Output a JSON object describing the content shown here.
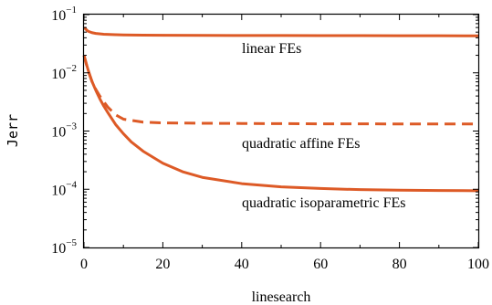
{
  "chart_data": {
    "type": "line",
    "xlabel": "linesearch",
    "ylabel": "Jerr",
    "xlim": [
      0,
      100
    ],
    "ylim": [
      1e-05,
      0.1
    ],
    "yscale": "log",
    "xticks": [
      "0",
      "20",
      "40",
      "60",
      "80",
      "100"
    ],
    "yticks": [
      {
        "base": "10",
        "exp": "−5",
        "value": 1e-05
      },
      {
        "base": "10",
        "exp": "−4",
        "value": 0.0001
      },
      {
        "base": "10",
        "exp": "−3",
        "value": 0.001
      },
      {
        "base": "10",
        "exp": "−2",
        "value": 0.01
      },
      {
        "base": "10",
        "exp": "−1",
        "value": 0.1
      }
    ],
    "grid": false,
    "legend": "none",
    "color": "#dd5a26",
    "series": [
      {
        "style": "solid",
        "label": "linear FEs",
        "x": [
          0,
          1,
          2,
          3,
          5,
          8,
          10,
          15,
          20,
          30,
          40,
          50,
          60,
          70,
          80,
          90,
          100
        ],
        "y": [
          0.06,
          0.052,
          0.049,
          0.0475,
          0.046,
          0.0452,
          0.0448,
          0.0444,
          0.0442,
          0.044,
          0.0438,
          0.0437,
          0.0436,
          0.0435,
          0.0434,
          0.0433,
          0.0432
        ]
      },
      {
        "style": "dashed",
        "label": "quadratic affine FEs",
        "x": [
          0,
          1,
          2,
          3,
          4,
          5,
          6,
          8,
          10,
          15,
          20,
          30,
          40,
          50,
          60,
          70,
          80,
          90,
          100
        ],
        "y": [
          0.02,
          0.011,
          0.0072,
          0.0052,
          0.004,
          0.0032,
          0.0026,
          0.0019,
          0.0016,
          0.00142,
          0.00138,
          0.00136,
          0.00135,
          0.00134,
          0.00133,
          0.00133,
          0.00132,
          0.00132,
          0.00132
        ]
      },
      {
        "style": "solid",
        "label": "quadratic isoparametric FEs",
        "x": [
          0,
          1,
          2,
          3,
          4,
          5,
          6,
          8,
          10,
          12,
          15,
          20,
          25,
          30,
          40,
          50,
          60,
          70,
          80,
          90,
          100
        ],
        "y": [
          0.02,
          0.0115,
          0.0072,
          0.005,
          0.0036,
          0.0027,
          0.0021,
          0.0013,
          0.0009,
          0.00065,
          0.00045,
          0.00028,
          0.0002,
          0.00016,
          0.000125,
          0.00011,
          0.000103,
          9.85e-05,
          9.65e-05,
          9.5e-05,
          9.45e-05
        ]
      }
    ]
  }
}
